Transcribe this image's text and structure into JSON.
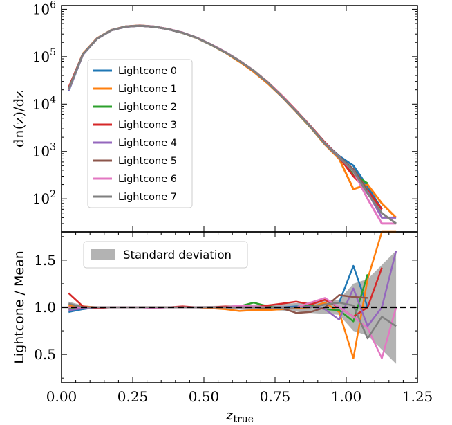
{
  "chart_data": [
    {
      "panel": "top",
      "type": "line",
      "ylabel": "dn(z)/dz",
      "yscale": "log",
      "ylim": [
        20,
        1200000
      ],
      "xlim": [
        0,
        1.25
      ],
      "ytick_labels": [
        "10^2",
        "10^3",
        "10^4",
        "10^5",
        "10^6"
      ],
      "legend_position": "center-left",
      "x": [
        0.025,
        0.075,
        0.125,
        0.175,
        0.225,
        0.275,
        0.325,
        0.375,
        0.425,
        0.475,
        0.525,
        0.575,
        0.625,
        0.675,
        0.725,
        0.775,
        0.825,
        0.875,
        0.925,
        0.975,
        1.025,
        1.075,
        1.125,
        1.175
      ],
      "series": [
        {
          "name": "Lightcone 0",
          "color": "#1f77b4",
          "values": [
            19000,
            110000,
            240000,
            360000,
            430000,
            450000,
            430000,
            380000,
            320000,
            250000,
            180000,
            125000,
            82000,
            50000,
            28000,
            14500,
            7000,
            3300,
            1500,
            800,
            500,
            180,
            60,
            null
          ]
        },
        {
          "name": "Lightcone 1",
          "color": "#ff7f0e",
          "values": [
            21000,
            115000,
            245000,
            365000,
            435000,
            455000,
            432000,
            382000,
            318000,
            248000,
            178000,
            122000,
            78000,
            48000,
            27000,
            14000,
            6800,
            3200,
            1400,
            700,
            160,
            200,
            80,
            40
          ]
        },
        {
          "name": "Lightcone 2",
          "color": "#2ca02c",
          "values": [
            20000,
            112000,
            242000,
            362000,
            432000,
            452000,
            431000,
            381000,
            319000,
            249000,
            179000,
            124000,
            81000,
            51000,
            28500,
            14300,
            6900,
            3250,
            1450,
            750,
            330,
            210,
            null,
            null
          ]
        },
        {
          "name": "Lightcone 3",
          "color": "#d62728",
          "values": [
            22000,
            113000,
            241000,
            361000,
            431000,
            451000,
            430000,
            380000,
            321000,
            251000,
            181000,
            125000,
            82000,
            50500,
            28800,
            14800,
            7200,
            3400,
            1550,
            760,
            300,
            150,
            60,
            null
          ]
        },
        {
          "name": "Lightcone 4",
          "color": "#9467bd",
          "values": [
            19500,
            111000,
            240500,
            360500,
            430500,
            450500,
            429000,
            379000,
            320000,
            250000,
            180000,
            124500,
            81500,
            50200,
            28300,
            14400,
            7000,
            3300,
            1450,
            740,
            400,
            140,
            40,
            40
          ]
        },
        {
          "name": "Lightcone 5",
          "color": "#8c564b",
          "values": [
            20500,
            112500,
            242500,
            361500,
            432500,
            451500,
            430500,
            381500,
            320500,
            250500,
            180500,
            124800,
            81200,
            50100,
            28100,
            14200,
            6850,
            3350,
            1500,
            770,
            420,
            150,
            null,
            null
          ]
        },
        {
          "name": "Lightcone 6",
          "color": "#e377c2",
          "values": [
            19800,
            111500,
            241500,
            360800,
            431500,
            452500,
            432500,
            382500,
            321500,
            251500,
            181500,
            125500,
            82500,
            50800,
            28400,
            14600,
            7050,
            3300,
            1480,
            760,
            380,
            100,
            30,
            30
          ]
        },
        {
          "name": "Lightcone 7",
          "color": "#7f7f7f",
          "values": [
            20200,
            112200,
            241200,
            361200,
            431200,
            451200,
            430200,
            380200,
            320200,
            250200,
            180200,
            124200,
            81800,
            50300,
            28200,
            14300,
            6950,
            3280,
            1460,
            750,
            390,
            130,
            50,
            30
          ]
        }
      ]
    },
    {
      "panel": "bottom",
      "type": "line",
      "ylabel": "Lightcone / Mean",
      "xlabel": "z_true",
      "ylim": [
        0.2,
        1.8
      ],
      "xlim": [
        0,
        1.25
      ],
      "yticks": [
        0.5,
        1.0,
        1.5
      ],
      "ytick_labels": [
        "0.5",
        "1.0",
        "1.5"
      ],
      "xticks": [
        0,
        0.25,
        0.5,
        0.75,
        1.0,
        1.25
      ],
      "xtick_labels": [
        "0.00",
        "0.25",
        "0.50",
        "0.75",
        "1.00",
        "1.25"
      ],
      "reference_line": 1.0,
      "band_label": "Standard deviation",
      "band_color": "#b3b3b3",
      "legend_position": "top-left",
      "x": [
        0.025,
        0.075,
        0.125,
        0.175,
        0.225,
        0.275,
        0.325,
        0.375,
        0.425,
        0.475,
        0.525,
        0.575,
        0.625,
        0.675,
        0.725,
        0.775,
        0.825,
        0.875,
        0.925,
        0.975,
        1.025,
        1.075,
        1.125,
        1.175
      ],
      "band_sd": [
        0.06,
        0.02,
        0.01,
        0.008,
        0.008,
        0.008,
        0.01,
        0.01,
        0.01,
        0.012,
        0.015,
        0.018,
        0.025,
        0.03,
        0.03,
        0.035,
        0.045,
        0.06,
        0.07,
        0.08,
        0.25,
        0.3,
        0.45,
        0.6
      ],
      "series": [
        {
          "name": "Lightcone 0",
          "color": "#1f77b4",
          "values": [
            0.95,
            0.98,
            1.0,
            1.0,
            1.0,
            1.0,
            1.0,
            1.0,
            1.0,
            1.0,
            1.0,
            1.0,
            1.0,
            1.0,
            1.0,
            1.0,
            1.01,
            1.0,
            1.03,
            1.05,
            1.44,
            1.0,
            null,
            null
          ]
        },
        {
          "name": "Lightcone 1",
          "color": "#ff7f0e",
          "values": [
            1.02,
            1.01,
            1.0,
            1.0,
            1.0,
            1.0,
            1.0,
            1.0,
            1.0,
            1.0,
            0.99,
            0.98,
            0.96,
            0.97,
            0.97,
            0.98,
            0.99,
            1.0,
            1.05,
            0.95,
            0.46,
            1.3,
            1.9,
            1.9
          ]
        },
        {
          "name": "Lightcone 2",
          "color": "#2ca02c",
          "values": [
            0.98,
            0.99,
            1.0,
            1.0,
            1.0,
            1.0,
            1.0,
            1.0,
            1.0,
            1.0,
            1.0,
            1.0,
            1.01,
            1.05,
            1.01,
            0.99,
            1.0,
            1.02,
            0.98,
            0.97,
            0.85,
            1.35,
            null,
            null
          ]
        },
        {
          "name": "Lightcone 3",
          "color": "#d62728",
          "values": [
            1.15,
            1.01,
            0.99,
            1.0,
            1.0,
            1.0,
            1.0,
            1.0,
            1.01,
            1.0,
            1.0,
            1.01,
            1.0,
            1.0,
            1.02,
            1.04,
            1.06,
            1.03,
            1.08,
            1.0,
            0.9,
            1.0,
            1.42,
            null
          ]
        },
        {
          "name": "Lightcone 4",
          "color": "#9467bd",
          "values": [
            0.97,
            0.99,
            1.0,
            1.0,
            1.0,
            1.0,
            1.0,
            1.0,
            1.0,
            1.0,
            1.0,
            1.0,
            1.0,
            1.0,
            1.0,
            1.0,
            1.0,
            1.01,
            0.98,
            0.87,
            1.2,
            0.8,
            1.0,
            1.6
          ]
        },
        {
          "name": "Lightcone 5",
          "color": "#8c564b",
          "values": [
            1.0,
            1.0,
            1.0,
            1.0,
            1.0,
            1.0,
            1.0,
            1.0,
            1.0,
            1.0,
            1.0,
            1.0,
            1.0,
            1.0,
            0.99,
            0.99,
            0.94,
            0.95,
            1.0,
            1.13,
            1.11,
            1.1,
            null,
            null
          ]
        },
        {
          "name": "Lightcone 6",
          "color": "#e377c2",
          "values": [
            1.0,
            1.0,
            1.0,
            1.0,
            1.0,
            1.0,
            0.99,
            1.0,
            1.0,
            1.0,
            1.0,
            1.0,
            1.02,
            1.01,
            1.0,
            0.99,
            1.0,
            1.05,
            1.1,
            1.0,
            0.9,
            0.78,
            0.46,
            1.0
          ]
        },
        {
          "name": "Lightcone 7",
          "color": "#7f7f7f",
          "values": [
            1.04,
            1.0,
            1.0,
            1.0,
            1.0,
            1.0,
            1.0,
            1.0,
            1.0,
            1.0,
            1.0,
            1.0,
            1.0,
            1.0,
            1.0,
            0.99,
            1.0,
            1.0,
            1.03,
            1.05,
            1.02,
            0.67,
            0.9,
            0.8
          ]
        }
      ]
    }
  ]
}
